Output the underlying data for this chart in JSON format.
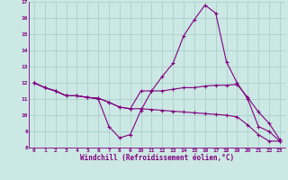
{
  "xlabel": "Windchill (Refroidissement éolien,°C)",
  "bg_color": "#cce8e4",
  "line_color": "#800080",
  "grid_color": "#aacfcc",
  "xlim": [
    -0.5,
    23.5
  ],
  "ylim": [
    8,
    17
  ],
  "xticks": [
    0,
    1,
    2,
    3,
    4,
    5,
    6,
    7,
    8,
    9,
    10,
    11,
    12,
    13,
    14,
    15,
    16,
    17,
    18,
    19,
    20,
    21,
    22,
    23
  ],
  "yticks": [
    8,
    9,
    10,
    11,
    12,
    13,
    14,
    15,
    16,
    17
  ],
  "line1_x": [
    0,
    1,
    2,
    3,
    4,
    5,
    6,
    7,
    8,
    9,
    10,
    11,
    12,
    13,
    14,
    15,
    16,
    17,
    18,
    19,
    20,
    21,
    22,
    23
  ],
  "line1_y": [
    12.0,
    11.7,
    11.5,
    11.2,
    11.2,
    11.1,
    11.0,
    9.3,
    8.6,
    8.8,
    10.3,
    11.5,
    12.4,
    13.2,
    14.9,
    15.9,
    16.8,
    16.3,
    13.3,
    12.0,
    11.0,
    9.3,
    9.0,
    8.4
  ],
  "line2_x": [
    0,
    1,
    2,
    3,
    4,
    5,
    6,
    7,
    8,
    9,
    10,
    11,
    12,
    13,
    14,
    15,
    16,
    17,
    18,
    19,
    20,
    21,
    22,
    23
  ],
  "line2_y": [
    12.0,
    11.7,
    11.5,
    11.2,
    11.2,
    11.1,
    11.05,
    10.8,
    10.5,
    10.4,
    11.5,
    11.5,
    11.5,
    11.6,
    11.7,
    11.7,
    11.8,
    11.85,
    11.85,
    11.9,
    11.1,
    10.2,
    9.5,
    8.5
  ],
  "line3_x": [
    0,
    1,
    2,
    3,
    4,
    5,
    6,
    7,
    8,
    9,
    10,
    11,
    12,
    13,
    14,
    15,
    16,
    17,
    18,
    19,
    20,
    21,
    22,
    23
  ],
  "line3_y": [
    12.0,
    11.7,
    11.5,
    11.2,
    11.2,
    11.1,
    11.05,
    10.8,
    10.5,
    10.4,
    10.4,
    10.35,
    10.3,
    10.25,
    10.2,
    10.15,
    10.1,
    10.05,
    10.0,
    9.9,
    9.4,
    8.8,
    8.4,
    8.4
  ]
}
